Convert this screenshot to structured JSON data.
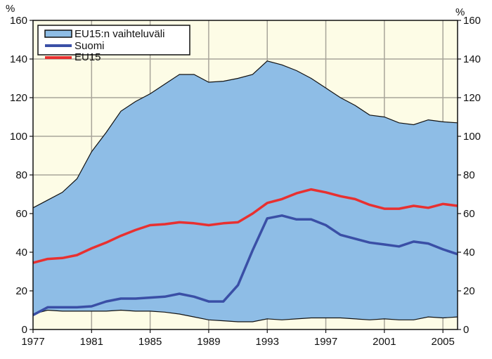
{
  "chart_data": {
    "type": "area",
    "xlabel": "",
    "ylabel": "%",
    "ylabel_right": "%",
    "xlim": [
      1977,
      2006
    ],
    "ylim": [
      0,
      160
    ],
    "x_ticks": [
      1977,
      1981,
      1985,
      1989,
      1993,
      1997,
      2001,
      2005
    ],
    "y_ticks": [
      0,
      20,
      40,
      60,
      80,
      100,
      120,
      140,
      160
    ],
    "grid": true,
    "legend_position": "top-left",
    "colors": {
      "background": "#fdfce6",
      "range_fill": "#8ebde6",
      "suomi": "#3a4fa6",
      "eu15": "#e83030",
      "grid": "#a8a59a"
    },
    "x": [
      1977,
      1978,
      1979,
      1980,
      1981,
      1982,
      1983,
      1984,
      1985,
      1986,
      1987,
      1988,
      1989,
      1990,
      1991,
      1992,
      1993,
      1994,
      1995,
      1996,
      1997,
      1998,
      1999,
      2000,
      2001,
      2002,
      2003,
      2004,
      2005,
      2006
    ],
    "range": {
      "name": "EU15:n vaihteluväli",
      "upper": [
        63,
        67,
        71,
        78,
        92,
        102,
        113,
        118,
        122,
        127,
        132,
        132,
        128,
        128.5,
        130,
        132,
        139,
        137,
        134,
        130,
        125,
        120,
        116,
        111,
        110,
        107,
        106,
        108.5,
        107.5,
        107
      ],
      "lower": [
        8,
        10,
        9.5,
        9.5,
        9.5,
        9.5,
        10,
        9.5,
        9.5,
        9,
        8,
        6.5,
        5,
        4.5,
        4,
        4,
        5.5,
        5,
        5.5,
        6,
        6,
        6,
        5.5,
        5,
        5.5,
        5,
        5,
        6.5,
        6,
        6.5
      ]
    },
    "series": [
      {
        "name": "Suomi",
        "values": [
          7.5,
          11.5,
          11.5,
          11.5,
          12,
          14.5,
          16,
          16,
          16.5,
          17,
          18.5,
          17,
          14.5,
          14.5,
          23,
          41,
          57.5,
          59,
          57,
          57,
          54,
          49,
          47,
          45,
          44,
          43,
          45.5,
          44.5,
          41.5,
          39
        ]
      },
      {
        "name": "EU15",
        "values": [
          34.5,
          36.5,
          37,
          38.5,
          42,
          45,
          48.5,
          51.5,
          54,
          54.5,
          55.5,
          55,
          54,
          55,
          55.5,
          60,
          65.5,
          67.5,
          70.5,
          72.5,
          71,
          69,
          67.5,
          64.5,
          62.5,
          62.5,
          64,
          63,
          65,
          64
        ]
      }
    ]
  }
}
